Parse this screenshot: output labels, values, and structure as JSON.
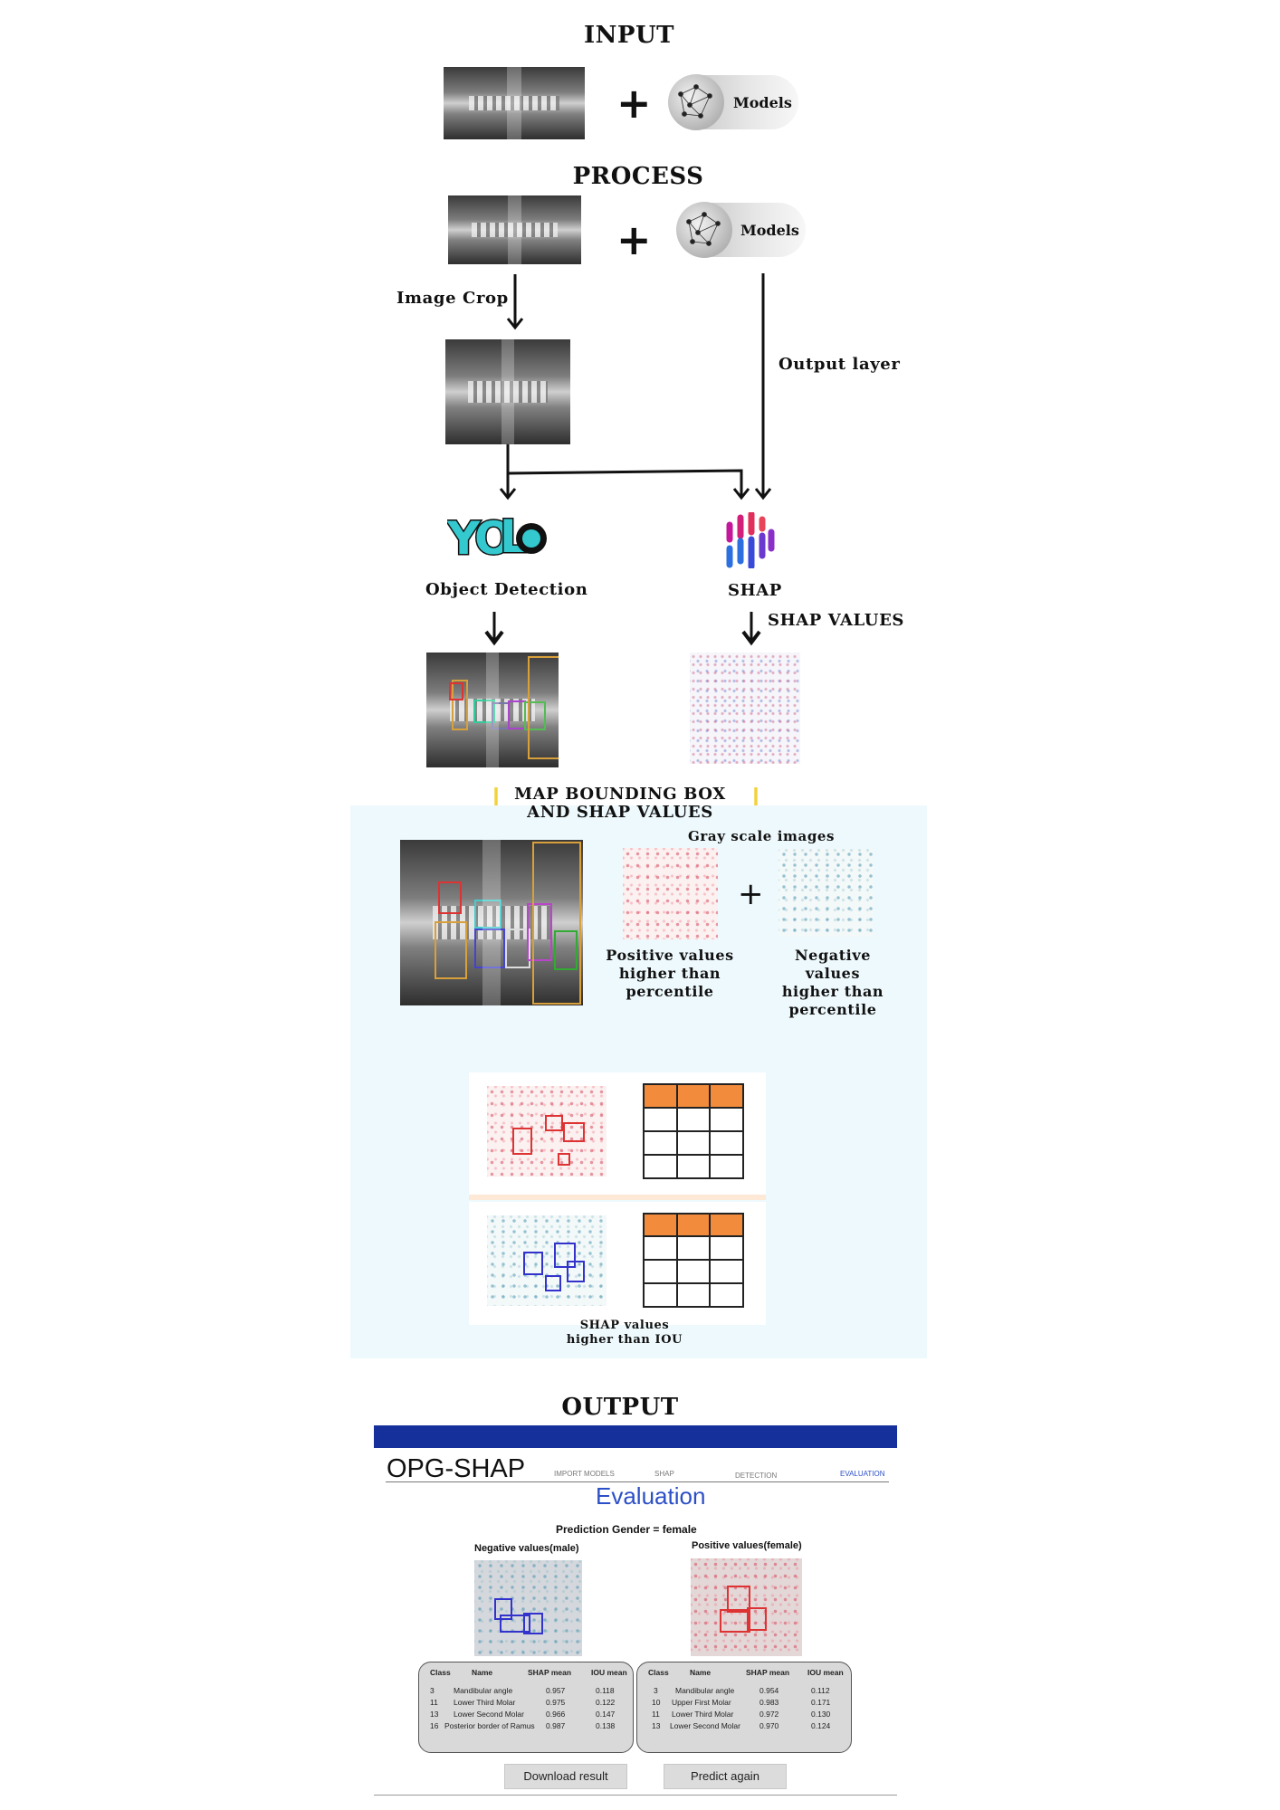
{
  "sections": {
    "input_title": "INPUT",
    "process_title": "PROCESS",
    "output_title": "OUTPUT"
  },
  "models_label": "Models",
  "plus_sign": "+",
  "process": {
    "image_crop": "Image Crop",
    "output_layer": "Output layer",
    "object_detection": "Object Detection",
    "shap": "SHAP",
    "shap_values": "SHAP VALUES",
    "map_line1": "MAP BOUNDING BOX",
    "map_line2": "AND SHAP VALUES",
    "gray_scale": "Gray scale images",
    "positive": [
      "Positive values",
      "higher than",
      "percentile"
    ],
    "negative": [
      "Negative values",
      "higher than",
      "percentile"
    ],
    "iou_line1": "SHAP values",
    "iou_line2": "higher than IOU"
  },
  "app": {
    "brand": "OPG-SHAP",
    "nav": [
      "IMPORT MODELS",
      "SHAP",
      "DETECTION",
      "EVALUATION"
    ],
    "page_title": "Evaluation",
    "prediction": "Prediction Gender = female",
    "negative_title": "Negative values(male)",
    "positive_title": "Positive values(female)",
    "columns": [
      "Class",
      "Name",
      "SHAP mean",
      "IOU mean"
    ],
    "negative_rows": [
      [
        "3",
        "Mandibular angle",
        "0.957",
        "0.118"
      ],
      [
        "11",
        "Lower Third Molar",
        "0.975",
        "0.122"
      ],
      [
        "13",
        "Lower Second Molar",
        "0.966",
        "0.147"
      ],
      [
        "16",
        "Posterior border of Ramus",
        "0.987",
        "0.138"
      ]
    ],
    "positive_rows": [
      [
        "3",
        "Mandibular angle",
        "0.954",
        "0.112"
      ],
      [
        "10",
        "Upper First Molar",
        "0.983",
        "0.171"
      ],
      [
        "11",
        "Lower Third Molar",
        "0.972",
        "0.130"
      ],
      [
        "13",
        "Lower Second Molar",
        "0.970",
        "0.124"
      ]
    ],
    "download_button": "Download result",
    "predict_button": "Predict again"
  },
  "colors": {
    "app_bar": "#15309a",
    "accent_blue": "#2b4fc7",
    "panel_bg": "#eef9fd",
    "table_header": "#f28c3c",
    "yellow_arrow": "#f2d23c"
  }
}
